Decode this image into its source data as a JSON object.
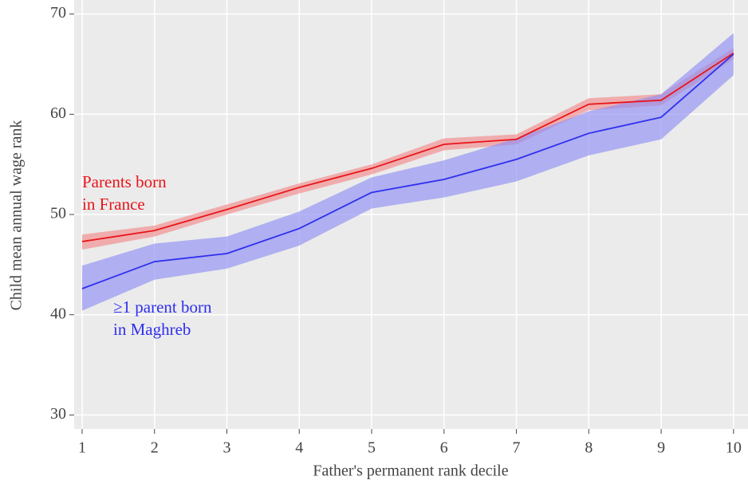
{
  "chart_data": {
    "type": "line",
    "x_label": "Father's permanent rank decile",
    "y_label": "Child mean annual wage rank",
    "x": [
      1,
      2,
      3,
      4,
      5,
      6,
      7,
      8,
      9,
      10
    ],
    "series": [
      {
        "name": [
          "Parents born",
          "in France"
        ],
        "color": "#e8151a",
        "band_color": "#f28a8a",
        "values": [
          47.3,
          48.4,
          50.5,
          52.7,
          54.6,
          57.0,
          57.5,
          61.0,
          61.4,
          66.1
        ],
        "lower": [
          46.5,
          47.8,
          50.0,
          52.1,
          54.0,
          56.4,
          57.0,
          60.4,
          60.9,
          65.5
        ],
        "upper": [
          48.0,
          48.9,
          51.0,
          53.1,
          55.0,
          57.6,
          58.0,
          61.6,
          62.0,
          66.6
        ]
      },
      {
        "name": [
          "≥1 parent born",
          "in Maghreb"
        ],
        "color": "#2f2ff0",
        "band_color": "#8f8ff5",
        "values": [
          42.6,
          45.3,
          46.1,
          48.6,
          52.2,
          53.5,
          55.5,
          58.1,
          59.7,
          66.0
        ],
        "lower": [
          40.4,
          43.5,
          44.6,
          46.9,
          50.6,
          51.7,
          53.3,
          55.9,
          57.5,
          63.9
        ],
        "upper": [
          44.9,
          47.1,
          47.8,
          50.3,
          53.7,
          55.4,
          57.6,
          60.3,
          62.0,
          68.1
        ]
      }
    ],
    "xlim": [
      0.89,
      10.2
    ],
    "ylim": [
      28.6,
      71.4
    ],
    "xticks": [
      1,
      2,
      3,
      4,
      5,
      6,
      7,
      8,
      9,
      10
    ],
    "yticks": [
      30,
      40,
      50,
      60,
      70
    ],
    "grid": true
  }
}
